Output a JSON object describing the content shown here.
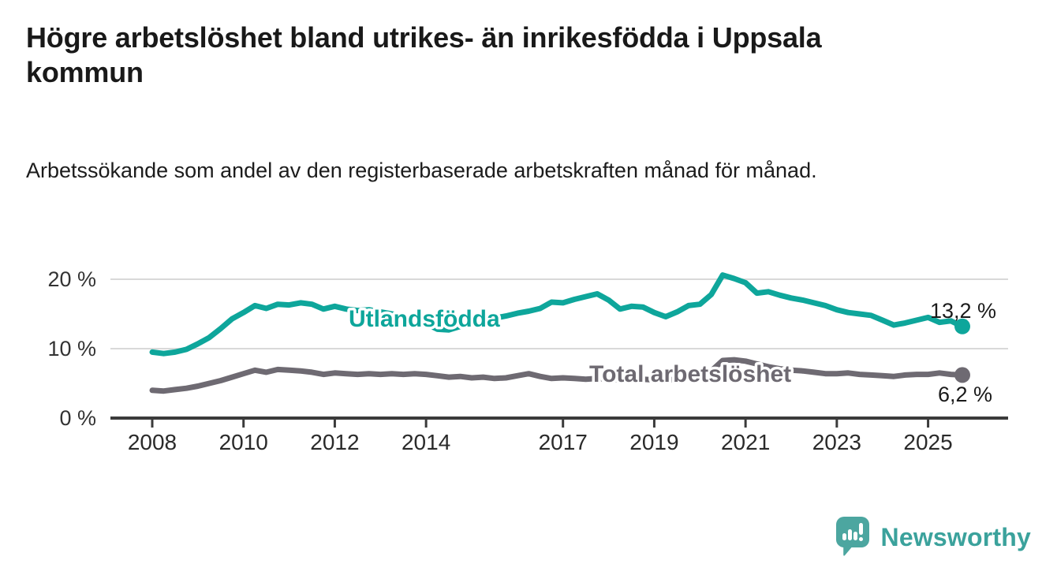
{
  "title": "Högre arbetslöshet bland utrikes- än inrikesfödda i Uppsala kommun",
  "subtitle": "Arbetssökande som andel av den registerbaserade arbetskraften månad för månad.",
  "colors": {
    "foreign_line": "#0ea69b",
    "total_line": "#6e6a72",
    "grid": "#d9d9d9",
    "axis": "#3b3b3b",
    "logo_teal": "#4ca6a0",
    "logo_text_teal": "#3ba29c"
  },
  "chart_data": {
    "type": "line",
    "title": "Högre arbetslöshet bland utrikes- än inrikesfödda i Uppsala kommun",
    "subtitle": "Arbetssökande som andel av den registerbaserade arbetskraften månad för månad.",
    "unit": "%",
    "xlabel": "",
    "ylabel": "",
    "ylim": [
      0,
      22
    ],
    "grid": "horizontal",
    "legend_position": "inline-labels",
    "x_ticks": [
      2008,
      2010,
      2012,
      2014,
      2017,
      2019,
      2021,
      2023,
      2025
    ],
    "y_ticks": [
      {
        "value": 0,
        "label": "0 %",
        "gridline": false
      },
      {
        "value": 10,
        "label": "10 %",
        "gridline": true
      },
      {
        "value": 20,
        "label": "20 %",
        "gridline": true
      }
    ],
    "x": [
      2008.0,
      2008.25,
      2008.5,
      2008.75,
      2009.0,
      2009.25,
      2009.5,
      2009.75,
      2010.0,
      2010.25,
      2010.5,
      2010.75,
      2011.0,
      2011.25,
      2011.5,
      2011.75,
      2012.0,
      2012.25,
      2012.5,
      2012.75,
      2013.0,
      2013.25,
      2013.5,
      2013.75,
      2014.0,
      2014.25,
      2014.5,
      2014.75,
      2015.0,
      2015.25,
      2015.5,
      2015.75,
      2016.0,
      2016.25,
      2016.5,
      2016.75,
      2017.0,
      2017.25,
      2017.5,
      2017.75,
      2018.0,
      2018.25,
      2018.5,
      2018.75,
      2019.0,
      2019.25,
      2019.5,
      2019.75,
      2020.0,
      2020.25,
      2020.5,
      2020.75,
      2021.0,
      2021.25,
      2021.5,
      2021.75,
      2022.0,
      2022.25,
      2022.5,
      2022.75,
      2023.0,
      2023.25,
      2023.5,
      2023.75,
      2024.0,
      2024.25,
      2024.5,
      2024.75,
      2025.0,
      2025.25,
      2025.5,
      2025.75
    ],
    "series": [
      {
        "name": "Utlandsfödda",
        "color": "#0ea69b",
        "end_label": "13,2 %",
        "end_value": 13.2,
        "values": [
          9.5,
          9.3,
          9.5,
          9.9,
          10.7,
          11.6,
          12.9,
          14.3,
          15.2,
          16.2,
          15.8,
          16.4,
          16.3,
          16.6,
          16.4,
          15.7,
          16.1,
          15.7,
          15.5,
          15.6,
          15.3,
          15.0,
          14.7,
          14.2,
          13.6,
          12.8,
          12.7,
          13.2,
          13.6,
          14.0,
          14.4,
          14.7,
          15.1,
          15.4,
          15.8,
          16.7,
          16.6,
          17.1,
          17.5,
          17.9,
          17.0,
          15.7,
          16.1,
          16.0,
          15.2,
          14.6,
          15.3,
          16.2,
          16.4,
          17.8,
          20.6,
          20.1,
          19.5,
          18.0,
          18.2,
          17.7,
          17.3,
          17.0,
          16.6,
          16.2,
          15.6,
          15.2,
          15.0,
          14.8,
          14.1,
          13.4,
          13.7,
          14.1,
          14.5,
          13.8,
          14.0,
          13.2
        ]
      },
      {
        "name": "Total arbetslöshet",
        "color": "#6e6a72",
        "end_label": "6,2 %",
        "end_value": 6.2,
        "values": [
          4.0,
          3.9,
          4.1,
          4.3,
          4.6,
          5.0,
          5.4,
          5.9,
          6.4,
          6.9,
          6.6,
          7.0,
          6.9,
          6.8,
          6.6,
          6.3,
          6.5,
          6.4,
          6.3,
          6.4,
          6.3,
          6.4,
          6.3,
          6.4,
          6.3,
          6.1,
          5.9,
          6.0,
          5.8,
          5.9,
          5.7,
          5.8,
          6.1,
          6.4,
          6.0,
          5.7,
          5.8,
          5.7,
          5.6,
          5.7,
          5.6,
          5.5,
          5.4,
          5.6,
          5.5,
          5.6,
          5.5,
          5.7,
          5.9,
          6.8,
          8.3,
          8.4,
          8.2,
          7.8,
          7.4,
          7.1,
          6.9,
          6.8,
          6.6,
          6.4,
          6.4,
          6.5,
          6.3,
          6.2,
          6.1,
          6.0,
          6.2,
          6.3,
          6.3,
          6.5,
          6.3,
          6.2
        ]
      }
    ]
  },
  "logo": {
    "text": "Newsworthy"
  }
}
